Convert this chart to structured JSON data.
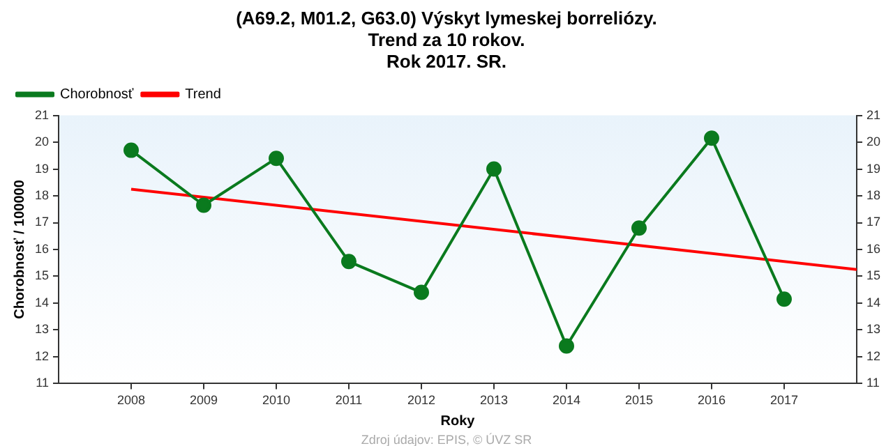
{
  "chart_data": {
    "type": "line",
    "title": "(A69.2, M01.2, G63.0) Výskyt lymeskej borreliózy.\nTrend za 10 rokov.\nRok 2017. SR.",
    "xlabel": "Roky",
    "ylabel": "Chorobnosť / 100000",
    "x": [
      2008,
      2009,
      2010,
      2011,
      2012,
      2013,
      2014,
      2015,
      2016,
      2017
    ],
    "series": [
      {
        "name": "Chorobnosť",
        "color": "#0a7a1e",
        "marker": "circle",
        "values": [
          19.7,
          17.65,
          19.4,
          15.55,
          14.4,
          19.0,
          12.4,
          16.8,
          20.15,
          14.15
        ]
      },
      {
        "name": "Trend",
        "color": "#ff0000",
        "marker": "none",
        "x": [
          2008,
          2018
        ],
        "values": [
          18.25,
          15.25
        ]
      }
    ],
    "xlim": [
      2007,
      2018
    ],
    "xticks": [
      2008,
      2009,
      2010,
      2011,
      2012,
      2013,
      2014,
      2015,
      2016,
      2017
    ],
    "ylim": [
      11,
      21
    ],
    "yticks": [
      11,
      12,
      13,
      14,
      15,
      16,
      17,
      18,
      19,
      20,
      21
    ],
    "y2lim": [
      11,
      21
    ],
    "y2ticks": [
      11,
      12,
      13,
      14,
      15,
      16,
      17,
      18,
      19,
      20,
      21
    ],
    "grid": false,
    "legend": "top left",
    "annotations": [
      "Zdroj údajov: EPIS, © ÚVZ SR"
    ]
  }
}
